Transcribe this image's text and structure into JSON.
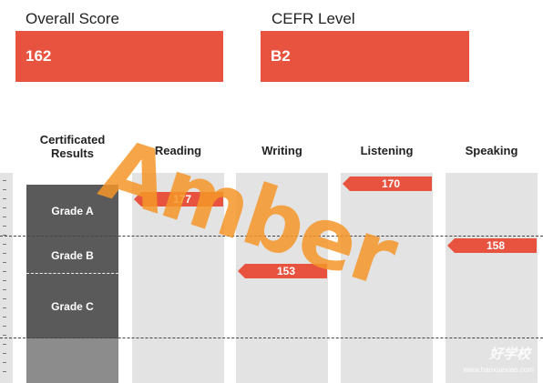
{
  "summary": {
    "overall_label": "Overall Score",
    "overall_value": "162",
    "cefr_label": "CEFR Level",
    "cefr_value": "B2"
  },
  "columns": {
    "certificated": "Certificated Results",
    "reading": "Reading",
    "writing": "Writing",
    "listening": "Listening",
    "speaking": "Speaking"
  },
  "grades": [
    "Grade A",
    "Grade B",
    "Grade C"
  ],
  "scores": {
    "reading": "177",
    "writing": "153",
    "listening": "170",
    "speaking": "158"
  },
  "watermark": "Amber",
  "logo": "好学校",
  "logo_url": "www.haoxuexiao.com",
  "colors": {
    "accent": "#e8533f",
    "grade_bg": "#5a5a5a",
    "column_bg": "#e3e3e3",
    "watermark": "#f59628"
  }
}
